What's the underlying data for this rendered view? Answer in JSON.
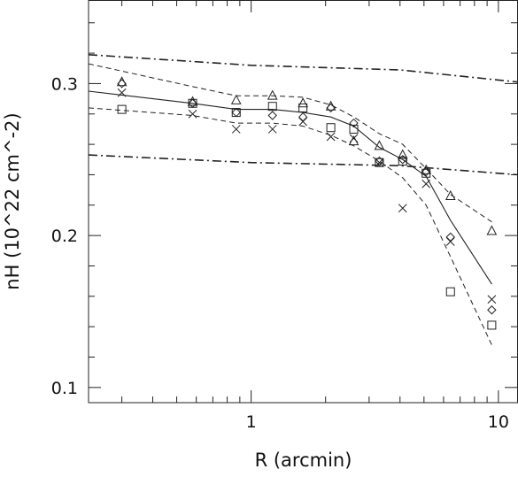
{
  "chart_data": {
    "type": "scatter",
    "xlabel": "R (arcmin)",
    "ylabel": "nH (10^22 cm^-2)",
    "xscale": "log",
    "xlim": [
      0.22,
      12
    ],
    "ylim": [
      0.09,
      0.355
    ],
    "x_ticks": [
      {
        "value": 1,
        "label": "1"
      },
      {
        "value": 10,
        "label": "10"
      }
    ],
    "y_ticks": [
      {
        "value": 0.1,
        "label": "0.1"
      },
      {
        "value": 0.2,
        "label": "0.2"
      },
      {
        "value": 0.3,
        "label": "0.3"
      }
    ],
    "grid": false,
    "series": [
      {
        "marker": "triangle",
        "points": [
          [
            0.3,
            0.301
          ],
          [
            0.58,
            0.288
          ],
          [
            0.87,
            0.289
          ],
          [
            1.22,
            0.292
          ],
          [
            1.62,
            0.287
          ],
          [
            2.1,
            0.285
          ],
          [
            2.6,
            0.262
          ],
          [
            3.3,
            0.259
          ],
          [
            4.1,
            0.253
          ],
          [
            5.1,
            0.243
          ],
          [
            6.4,
            0.226
          ],
          [
            9.4,
            0.203
          ]
        ]
      },
      {
        "marker": "diamond",
        "points": [
          [
            0.3,
            0.3
          ],
          [
            0.58,
            0.287
          ],
          [
            0.87,
            0.281
          ],
          [
            1.22,
            0.279
          ],
          [
            1.62,
            0.278
          ],
          [
            2.1,
            0.284
          ],
          [
            2.6,
            0.274
          ],
          [
            3.3,
            0.249
          ],
          [
            4.1,
            0.25
          ],
          [
            5.1,
            0.242
          ],
          [
            6.4,
            0.199
          ],
          [
            9.4,
            0.151
          ]
        ]
      },
      {
        "marker": "square",
        "points": [
          [
            0.3,
            0.283
          ],
          [
            0.58,
            0.287
          ],
          [
            0.87,
            0.281
          ],
          [
            1.22,
            0.285
          ],
          [
            1.62,
            0.284
          ],
          [
            2.1,
            0.271
          ],
          [
            2.6,
            0.27
          ],
          [
            3.3,
            0.248
          ],
          [
            4.1,
            0.249
          ],
          [
            5.1,
            0.241
          ],
          [
            6.4,
            0.163
          ],
          [
            9.4,
            0.141
          ]
        ]
      },
      {
        "marker": "cross",
        "points": [
          [
            0.3,
            0.294
          ],
          [
            0.58,
            0.28
          ],
          [
            0.87,
            0.27
          ],
          [
            1.22,
            0.27
          ],
          [
            1.62,
            0.275
          ],
          [
            2.1,
            0.265
          ],
          [
            2.6,
            0.264
          ],
          [
            3.3,
            0.248
          ],
          [
            4.1,
            0.218
          ],
          [
            5.1,
            0.234
          ],
          [
            6.4,
            0.196
          ],
          [
            9.4,
            0.158
          ]
        ]
      }
    ],
    "lines": [
      {
        "style": "solid",
        "points": [
          [
            0.22,
            0.295
          ],
          [
            0.58,
            0.287
          ],
          [
            0.87,
            0.283
          ],
          [
            1.22,
            0.283
          ],
          [
            1.62,
            0.281
          ],
          [
            2.1,
            0.278
          ],
          [
            2.6,
            0.272
          ],
          [
            3.3,
            0.258
          ],
          [
            4.1,
            0.25
          ],
          [
            5.1,
            0.239
          ],
          [
            6.4,
            0.21
          ],
          [
            9.4,
            0.168
          ]
        ]
      },
      {
        "style": "dashed",
        "points": [
          [
            0.22,
            0.313
          ],
          [
            0.58,
            0.298
          ],
          [
            0.87,
            0.292
          ],
          [
            1.22,
            0.292
          ],
          [
            1.62,
            0.291
          ],
          [
            2.1,
            0.286
          ],
          [
            2.6,
            0.278
          ],
          [
            3.3,
            0.267
          ],
          [
            4.1,
            0.26
          ],
          [
            5.1,
            0.244
          ],
          [
            6.4,
            0.227
          ],
          [
            9.4,
            0.209
          ]
        ]
      },
      {
        "style": "dashed",
        "points": [
          [
            0.22,
            0.284
          ],
          [
            0.58,
            0.279
          ],
          [
            0.87,
            0.274
          ],
          [
            1.22,
            0.274
          ],
          [
            1.62,
            0.272
          ],
          [
            2.1,
            0.266
          ],
          [
            2.6,
            0.259
          ],
          [
            3.3,
            0.249
          ],
          [
            4.1,
            0.238
          ],
          [
            5.1,
            0.22
          ],
          [
            6.4,
            0.186
          ],
          [
            9.4,
            0.128
          ]
        ]
      },
      {
        "style": "dashdot",
        "points": [
          [
            0.22,
            0.319
          ],
          [
            1.0,
            0.312
          ],
          [
            4.0,
            0.309
          ],
          [
            12,
            0.301
          ]
        ]
      },
      {
        "style": "dashdot",
        "points": [
          [
            0.22,
            0.253
          ],
          [
            1.0,
            0.248
          ],
          [
            4.0,
            0.246
          ],
          [
            12,
            0.24
          ]
        ]
      }
    ]
  }
}
